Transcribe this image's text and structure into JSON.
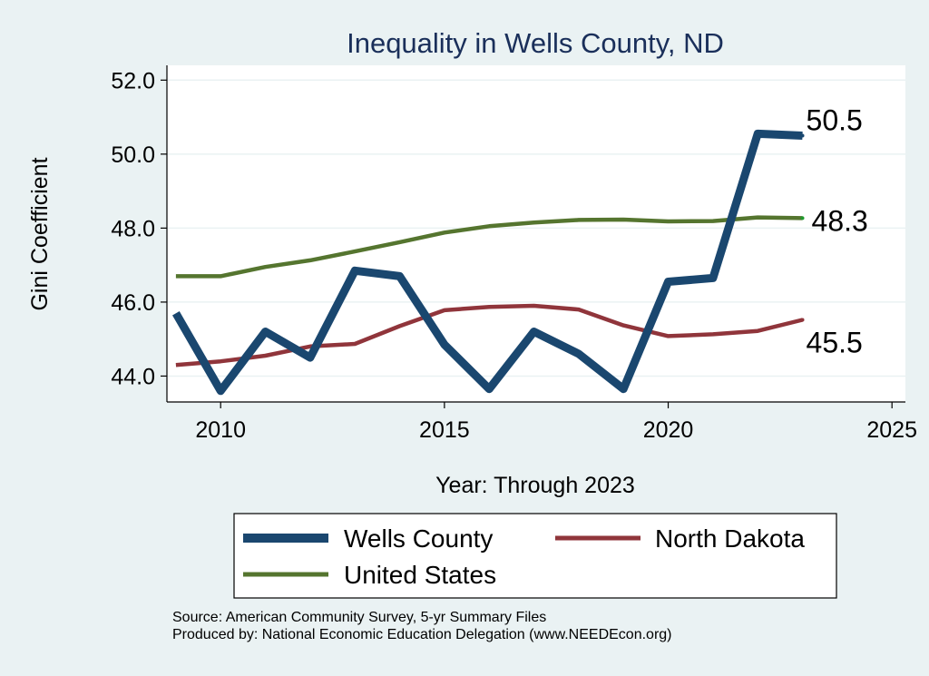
{
  "chart_data": {
    "type": "line",
    "title": "Inequality in Wells County, ND",
    "xlabel": "Year: Through 2023",
    "ylabel": "Gini Coefficient",
    "xlim": [
      2008.8,
      2025.3
    ],
    "ylim": [
      43.3,
      52.4
    ],
    "xticks": [
      2010,
      2015,
      2020,
      2025
    ],
    "yticks": [
      44.0,
      46.0,
      48.0,
      50.0,
      52.0
    ],
    "grid": true,
    "legend_position": "bottom",
    "x": [
      2009,
      2010,
      2011,
      2012,
      2013,
      2014,
      2015,
      2016,
      2017,
      2018,
      2019,
      2020,
      2021,
      2022,
      2023
    ],
    "series": [
      {
        "name": "Wells County",
        "color": "#1a476f",
        "end_label": "50.5",
        "values": [
          45.7,
          43.6,
          45.2,
          44.5,
          46.85,
          46.7,
          44.85,
          43.65,
          45.2,
          44.6,
          43.65,
          46.55,
          46.65,
          50.55,
          50.5
        ]
      },
      {
        "name": "North Dakota",
        "color": "#90353b",
        "end_label": "45.5",
        "values": [
          44.3,
          44.4,
          44.55,
          44.8,
          44.87,
          45.35,
          45.78,
          45.87,
          45.9,
          45.8,
          45.37,
          45.08,
          45.13,
          45.22,
          45.52
        ]
      },
      {
        "name": "United States",
        "color": "#55752f",
        "end_label": "48.3",
        "values": [
          46.7,
          46.7,
          46.95,
          47.13,
          47.37,
          47.62,
          47.88,
          48.05,
          48.15,
          48.22,
          48.23,
          48.18,
          48.19,
          48.29,
          48.27
        ]
      }
    ]
  },
  "footer": {
    "source": "Source: American Community Survey, 5-yr Summary Files",
    "produced_by": "Produced by: National Economic Education Delegation (www.NEEDEcon.org)"
  }
}
